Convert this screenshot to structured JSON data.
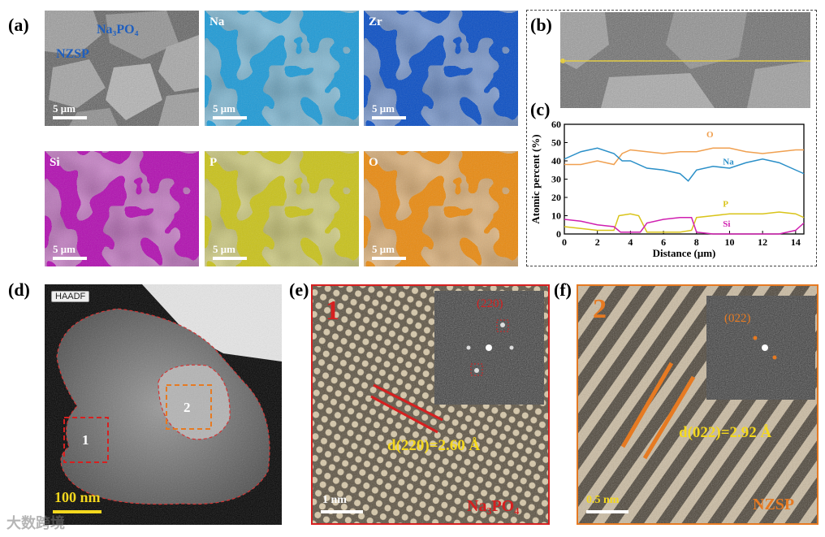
{
  "panels": {
    "a": "(a)",
    "b": "(b)",
    "c": "(c)",
    "d": "(d)",
    "e": "(e)",
    "f": "(f)"
  },
  "sem": {
    "phase1": "Na₃PO₄",
    "phase2": "NZSP",
    "scale": "5 μm"
  },
  "maps": [
    {
      "element": "Na",
      "color": "#1e9ad6"
    },
    {
      "element": "Zr",
      "color": "#0b4fc4"
    },
    {
      "element": "Si",
      "color": "#b10fb0"
    },
    {
      "element": "P",
      "color": "#c9c21a"
    },
    {
      "element": "O",
      "color": "#e98a10"
    }
  ],
  "colors": {
    "line_scan": "#f2d21a",
    "red": "#d62020",
    "orange": "#e67a22",
    "yellow_text": "#f4d81e"
  },
  "chart_data": {
    "type": "line",
    "title": "",
    "xlabel": "Distance (μm)",
    "ylabel": "Atomic percent (%)",
    "xlim": [
      0,
      14.5
    ],
    "ylim": [
      0,
      60
    ],
    "xticks": [
      0,
      2,
      4,
      6,
      8,
      10,
      12,
      14
    ],
    "yticks": [
      0,
      10,
      20,
      30,
      40,
      50,
      60
    ],
    "series": [
      {
        "name": "O",
        "color": "#f0a050",
        "x": [
          0,
          1,
          2,
          3,
          3.5,
          4,
          5,
          6,
          7,
          8,
          9,
          10,
          11,
          12,
          13,
          14,
          14.5
        ],
        "y": [
          38,
          38,
          40,
          38,
          44,
          46,
          45,
          44,
          45,
          45,
          47,
          47,
          45,
          44,
          45,
          46,
          46
        ]
      },
      {
        "name": "Na",
        "color": "#2a8fc8",
        "x": [
          0,
          1,
          2,
          3,
          3.5,
          4,
          5,
          6,
          7,
          7.5,
          8,
          9,
          10,
          11,
          12,
          13,
          14,
          14.5
        ],
        "y": [
          41,
          45,
          47,
          44,
          40,
          40,
          36,
          35,
          33,
          29,
          35,
          37,
          36,
          39,
          41,
          39,
          35,
          33
        ]
      },
      {
        "name": "P",
        "color": "#d9c41a",
        "x": [
          0,
          1,
          2,
          3,
          3.3,
          4,
          4.5,
          5,
          6,
          7,
          7.7,
          8,
          9,
          10,
          11,
          12,
          13,
          14,
          14.5
        ],
        "y": [
          4,
          3,
          2,
          2,
          10,
          11,
          10,
          1,
          1,
          1,
          2,
          9,
          10,
          11,
          11,
          11,
          12,
          11,
          9
        ]
      },
      {
        "name": "Si",
        "color": "#d020b0",
        "x": [
          0,
          1,
          2,
          3,
          3.4,
          4,
          4.6,
          5,
          6,
          7,
          7.7,
          8,
          9,
          10,
          11,
          12,
          13,
          14,
          14.5
        ],
        "y": [
          8,
          7,
          5,
          4,
          1,
          1,
          1,
          6,
          8,
          9,
          9,
          1,
          0,
          0,
          0,
          0,
          0,
          2,
          6
        ]
      }
    ]
  },
  "tem": {
    "haadf": "HAADF",
    "scale": "100 nm",
    "region1": "1",
    "region2": "2"
  },
  "hrtem1": {
    "num": "1",
    "fft_label": "(220)",
    "d_spacing": "d(220)=2.60 Å",
    "scale": "1 nm",
    "phase": "Na₃PO₄"
  },
  "hrtem2": {
    "num": "2",
    "fft_label": "(022)",
    "d_spacing": "d(022)=2.92 Å",
    "scale": "0.5 nm",
    "phase": "NZSP"
  },
  "watermark": "大数跨境"
}
